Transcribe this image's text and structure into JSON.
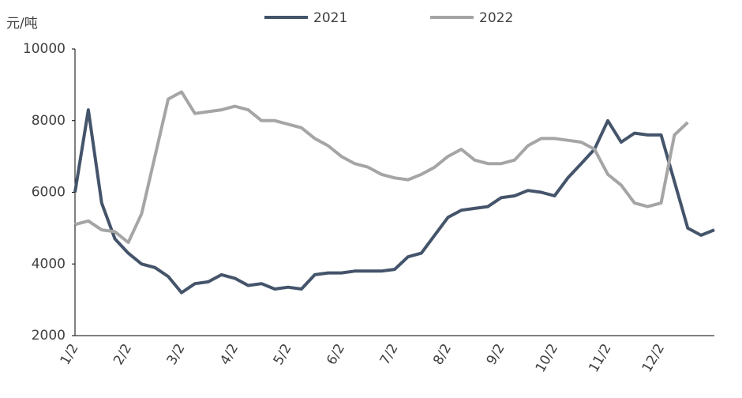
{
  "chart_data": {
    "type": "line",
    "y_label": "元/吨",
    "categories": [
      "1/2",
      null,
      null,
      null,
      "2/2",
      null,
      null,
      null,
      "3/2",
      null,
      null,
      null,
      "4/2",
      null,
      null,
      null,
      "5/2",
      null,
      null,
      null,
      "6/2",
      null,
      null,
      null,
      "7/2",
      null,
      null,
      null,
      "8/2",
      null,
      null,
      null,
      "9/2",
      null,
      null,
      null,
      "10/2",
      null,
      null,
      null,
      "11/2",
      null,
      null,
      null,
      "12/2",
      null,
      null,
      null,
      null
    ],
    "series": [
      {
        "name": "2021",
        "color": "#44546a",
        "values": [
          6000,
          8300,
          5700,
          4700,
          4300,
          4000,
          3900,
          3650,
          3200,
          3450,
          3500,
          3700,
          3600,
          3400,
          3450,
          3300,
          3350,
          3300,
          3700,
          3750,
          3750,
          3800,
          3800,
          3800,
          3850,
          4200,
          4300,
          4800,
          5300,
          5500,
          5550,
          5600,
          5850,
          5900,
          6050,
          6000,
          5900,
          6400,
          6800,
          7200,
          8000,
          7400,
          7650,
          7600,
          7600,
          6300,
          5000,
          4800,
          4950
        ]
      },
      {
        "name": "2022",
        "color": "#a5a5a5",
        "values": [
          5100,
          5200,
          4950,
          4900,
          4600,
          5400,
          7000,
          8600,
          8800,
          8200,
          8250,
          8300,
          8400,
          8300,
          8000,
          8000,
          7900,
          7800,
          7500,
          7300,
          7000,
          6800,
          6700,
          6500,
          6400,
          6350,
          6500,
          6700,
          7000,
          7200,
          6900,
          6800,
          6800,
          6900,
          7300,
          7500,
          7500,
          7450,
          7400,
          7200,
          6500,
          6200,
          5700,
          5600,
          5700,
          7600,
          7950,
          null,
          null
        ]
      }
    ],
    "ylim": [
      2000,
      10000
    ],
    "yticks": [
      2000,
      4000,
      6000,
      8000,
      10000
    ],
    "grid": false
  }
}
